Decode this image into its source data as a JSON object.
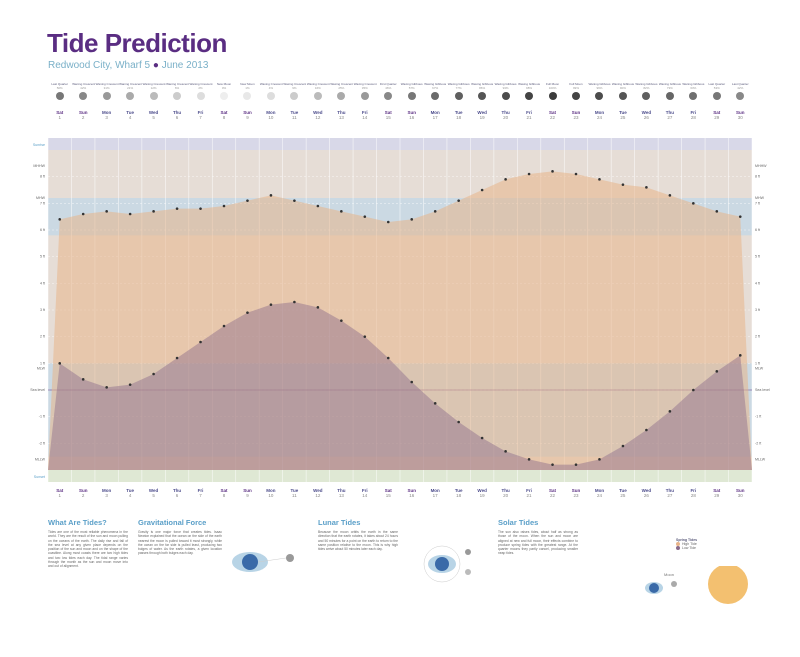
{
  "header": {
    "title": "Tide Prediction",
    "subtitle_place": "Redwood City, Wharf 5",
    "subtitle_date": "June 2013"
  },
  "moon_phases": [
    {
      "label": "Last Quarter",
      "pct": "50%",
      "shade": "#777"
    },
    {
      "label": "Waning Crescent",
      "pct": "42%",
      "shade": "#888"
    },
    {
      "label": "Waning Crescent",
      "pct": "31%",
      "shade": "#999"
    },
    {
      "label": "Waning Crescent",
      "pct": "21%",
      "shade": "#aaa"
    },
    {
      "label": "Waning Crescent",
      "pct": "12%",
      "shade": "#bbb"
    },
    {
      "label": "Waning Crescent",
      "pct": "6%",
      "shade": "#ccc"
    },
    {
      "label": "Waning Crescent",
      "pct": "2%",
      "shade": "#ddd"
    },
    {
      "label": "New Moon",
      "pct": "0%",
      "shade": "#eee"
    },
    {
      "label": "New Moon",
      "pct": "1%",
      "shade": "#e8e8e8"
    },
    {
      "label": "Waxing Crescent",
      "pct": "4%",
      "shade": "#ddd"
    },
    {
      "label": "Waxing Crescent",
      "pct": "9%",
      "shade": "#ccc"
    },
    {
      "label": "Waxing Crescent",
      "pct": "16%",
      "shade": "#bbb"
    },
    {
      "label": "Waxing Crescent",
      "pct": "25%",
      "shade": "#aaa"
    },
    {
      "label": "Waxing Crescent",
      "pct": "35%",
      "shade": "#999"
    },
    {
      "label": "First Quarter",
      "pct": "46%",
      "shade": "#888"
    },
    {
      "label": "Waxing Gibbous",
      "pct": "57%",
      "shade": "#777"
    },
    {
      "label": "Waxing Gibbous",
      "pct": "67%",
      "shade": "#6a6a6a"
    },
    {
      "label": "Waxing Gibbous",
      "pct": "77%",
      "shade": "#5f5f5f"
    },
    {
      "label": "Waxing Gibbous",
      "pct": "86%",
      "shade": "#555"
    },
    {
      "label": "Waxing Gibbous",
      "pct": "93%",
      "shade": "#4c4c4c"
    },
    {
      "label": "Waxing Gibbous",
      "pct": "98%",
      "shade": "#444"
    },
    {
      "label": "Full Moon",
      "pct": "100%",
      "shade": "#3c3c3c"
    },
    {
      "label": "Full Moon",
      "pct": "99%",
      "shade": "#444"
    },
    {
      "label": "Waning Gibbous",
      "pct": "96%",
      "shade": "#4c4c4c"
    },
    {
      "label": "Waning Gibbous",
      "pct": "90%",
      "shade": "#555"
    },
    {
      "label": "Waning Gibbous",
      "pct": "82%",
      "shade": "#5f5f5f"
    },
    {
      "label": "Waning Gibbous",
      "pct": "73%",
      "shade": "#666"
    },
    {
      "label": "Waning Gibbous",
      "pct": "63%",
      "shade": "#6f6f6f"
    },
    {
      "label": "Last Quarter",
      "pct": "53%",
      "shade": "#777"
    },
    {
      "label": "Last Quarter",
      "pct": "42%",
      "shade": "#888"
    }
  ],
  "days": [
    {
      "dw": "Sat",
      "dn": "1"
    },
    {
      "dw": "Sun",
      "dn": "2"
    },
    {
      "dw": "Mon",
      "dn": "3"
    },
    {
      "dw": "Tue",
      "dn": "4"
    },
    {
      "dw": "Wed",
      "dn": "5"
    },
    {
      "dw": "Thu",
      "dn": "6"
    },
    {
      "dw": "Fri",
      "dn": "7"
    },
    {
      "dw": "Sat",
      "dn": "8"
    },
    {
      "dw": "Sun",
      "dn": "9"
    },
    {
      "dw": "Mon",
      "dn": "10"
    },
    {
      "dw": "Tue",
      "dn": "11"
    },
    {
      "dw": "Wed",
      "dn": "12"
    },
    {
      "dw": "Thu",
      "dn": "13"
    },
    {
      "dw": "Fri",
      "dn": "14"
    },
    {
      "dw": "Sat",
      "dn": "15"
    },
    {
      "dw": "Sun",
      "dn": "16"
    },
    {
      "dw": "Mon",
      "dn": "17"
    },
    {
      "dw": "Tue",
      "dn": "18"
    },
    {
      "dw": "Wed",
      "dn": "19"
    },
    {
      "dw": "Thu",
      "dn": "20"
    },
    {
      "dw": "Fri",
      "dn": "21"
    },
    {
      "dw": "Sat",
      "dn": "22"
    },
    {
      "dw": "Sun",
      "dn": "23"
    },
    {
      "dw": "Mon",
      "dn": "24"
    },
    {
      "dw": "Tue",
      "dn": "25"
    },
    {
      "dw": "Wed",
      "dn": "26"
    },
    {
      "dw": "Thu",
      "dn": "27"
    },
    {
      "dw": "Fri",
      "dn": "28"
    },
    {
      "dw": "Sat",
      "dn": "29"
    },
    {
      "dw": "Sun",
      "dn": "30"
    }
  ],
  "axis": {
    "left_labels": [
      "MHHW",
      "8 ft",
      "7 ft",
      "MHW",
      "6 ft",
      "5 ft",
      "4 ft",
      "3 ft",
      "2 ft",
      "1 ft",
      "MLW",
      "Sea level",
      "-1 ft",
      "-2 ft",
      "MLLW"
    ],
    "sunrise": "Sunrise",
    "sunset": "Sunset"
  },
  "chart_data": {
    "type": "area",
    "x": [
      1,
      2,
      3,
      4,
      5,
      6,
      7,
      8,
      9,
      10,
      11,
      12,
      13,
      14,
      15,
      16,
      17,
      18,
      19,
      20,
      21,
      22,
      23,
      24,
      25,
      26,
      27,
      28,
      29,
      30
    ],
    "series": [
      {
        "values": [
          6.4,
          6.6,
          6.7,
          6.6,
          6.7,
          6.8,
          6.8,
          6.9,
          7.1,
          7.3,
          7.1,
          6.9,
          6.7,
          6.5,
          6.3,
          6.4,
          6.7,
          7.1,
          7.5,
          7.9,
          8.1,
          8.2,
          8.1,
          7.9,
          7.7,
          7.6,
          7.3,
          7.0,
          6.7,
          6.5
        ]
      },
      {
        "values": [
          1.0,
          0.4,
          0.1,
          0.2,
          0.6,
          1.2,
          1.8,
          2.4,
          2.9,
          3.2,
          3.3,
          3.1,
          2.6,
          2.0,
          1.2,
          0.3,
          -0.5,
          -1.2,
          -1.8,
          -2.3,
          -2.6,
          -2.8,
          -2.8,
          -2.6,
          -2.1,
          -1.5,
          -0.8,
          0.0,
          0.7,
          1.3
        ]
      }
    ],
    "ylim": [
      -3,
      9
    ]
  },
  "sections": {
    "what_are_tides": {
      "title": "What Are Tides?",
      "body": "Tides are one of the most reliable phenomena in the world. They are the result of the sun and moon pulling on the oceans of the earth. The daily rise and fall of the sea level at any given place depends on the position of the sun and moon and on the shape of the coastline. Along most coasts there are two high tides and two low tides each day. The tidal range varies through the month as the sun and moon move into and out of alignment."
    },
    "gravitational_force": {
      "title": "Gravitational Force",
      "body": "Gravity is one major force that creates tides. Isaac Newton explained that the ocean on the side of the earth nearest the moon is pulled toward it most strongly, while the ocean on the far side is pulled least, producing two bulges of water. As the earth rotates, a given location passes through both bulges each day."
    },
    "lunar_tides": {
      "title": "Lunar Tides",
      "body": "Because the moon orbits the earth in the same direction that the earth rotates, it takes about 24 hours and 50 minutes for a point on the earth to return to the same position relative to the moon. This is why high tides arrive about 50 minutes later each day."
    },
    "solar_tides": {
      "title": "Solar Tides",
      "body": "The sun also raises tides, about half as strong as those of the moon. When the sun and moon are aligned at new and full moon, their effects combine to produce spring tides with the greatest range. At the quarter moons they partly cancel, producing smaller neap tides."
    }
  },
  "diagram": {
    "earth_label": "Earth",
    "moon_label": "Moon",
    "sun_label": "Sun",
    "legend_title": "Spring Tides",
    "legend_high": "High Tide",
    "legend_low": "Low Tide"
  },
  "colors": {
    "title": "#5a2d82",
    "accent": "#5a9fc8",
    "sea": "#b8d4e6",
    "high": "#e8b48a",
    "low": "#8a6a8a"
  }
}
